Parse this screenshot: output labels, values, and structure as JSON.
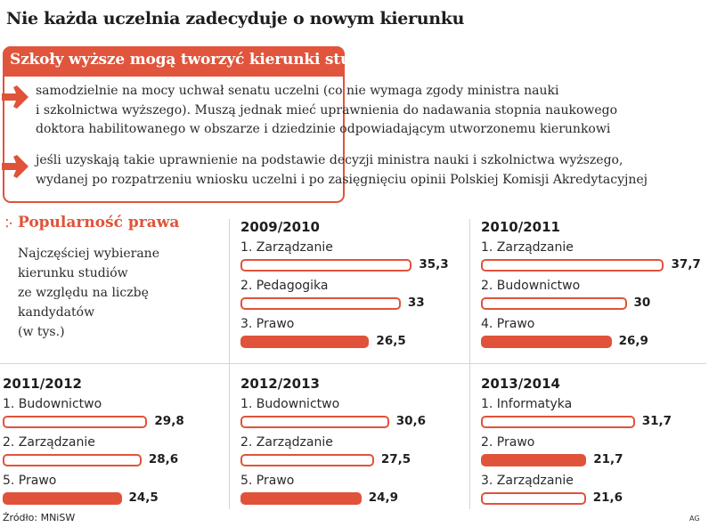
{
  "title": "Nie każda uczelnia zadecyduje o nowym kierunku",
  "infobox": {
    "header": "Szkoły wyższe mogą tworzyć kierunki studiów:",
    "bullets": [
      {
        "icon": "arrow-right-icon",
        "lines": [
          "samodzielnie na mocy uchwał senatu uczelni (co nie wymaga zgody ministra nauki",
          "i szkolnictwa wyższego). Muszą jednak mieć uprawnienia do nadawania stopnia naukowego",
          "doktora habilitowanego w obszarze i dziedzinie odpowiadającym utworzonemu kierunkowi"
        ]
      },
      {
        "icon": "arrow-right-icon",
        "lines": [
          "jeśli uzyskają takie uprawnienie na podstawie decyzji ministra nauki i szkolnictwa wyższego,",
          "wydanej po rozpatrzeniu wniosku uczelni i po zasięgnięciu opinii Polskiej Komisji Akredytacyjnej"
        ]
      }
    ]
  },
  "section": {
    "title": "Popularność prawa",
    "dots_icon": "dots-icon",
    "description": [
      "Najczęściej wybierane",
      "kierunku studiów",
      "ze względu na liczbę",
      "kandydatów",
      "(w tys.)"
    ]
  },
  "colors": {
    "accent": "#e0533a",
    "text": "#1e1e1e",
    "divider": "#d5d5d5"
  },
  "chart_data": {
    "type": "bar",
    "title": "Popularność prawa",
    "subtitle": "Najczęściej wybierane kierunku studiów ze względu na liczbę kandydatów (w tys.)",
    "unit": "tys.",
    "highlight": "Prawo",
    "panels": [
      {
        "year": "2009/2010",
        "items": [
          {
            "label": "1. Zarządzanie",
            "value": 35.3,
            "value_label": "35,3",
            "highlight": false
          },
          {
            "label": "2. Pedagogika",
            "value": 33,
            "value_label": "33",
            "highlight": false
          },
          {
            "label": "3. Prawo",
            "value": 26.5,
            "value_label": "26,5",
            "highlight": true
          }
        ]
      },
      {
        "year": "2010/2011",
        "items": [
          {
            "label": "1. Zarządzanie",
            "value": 37.7,
            "value_label": "37,7",
            "highlight": false
          },
          {
            "label": "2. Budownictwo",
            "value": 30,
            "value_label": "30",
            "highlight": false
          },
          {
            "label": "4. Prawo",
            "value": 26.9,
            "value_label": "26,9",
            "highlight": true
          }
        ]
      },
      {
        "year": "2011/2012",
        "items": [
          {
            "label": "1. Budownictwo",
            "value": 29.8,
            "value_label": "29,8",
            "highlight": false
          },
          {
            "label": "2. Zarządzanie",
            "value": 28.6,
            "value_label": "28,6",
            "highlight": false
          },
          {
            "label": "5. Prawo",
            "value": 24.5,
            "value_label": "24,5",
            "highlight": true
          }
        ]
      },
      {
        "year": "2012/2013",
        "items": [
          {
            "label": "1. Budownictwo",
            "value": 30.6,
            "value_label": "30,6",
            "highlight": false
          },
          {
            "label": "2. Zarządzanie",
            "value": 27.5,
            "value_label": "27,5",
            "highlight": false
          },
          {
            "label": "5. Prawo",
            "value": 24.9,
            "value_label": "24,9",
            "highlight": true
          }
        ]
      },
      {
        "year": "2013/2014",
        "items": [
          {
            "label": "1. Informatyka",
            "value": 31.7,
            "value_label": "31,7",
            "highlight": false
          },
          {
            "label": "2. Prawo",
            "value": 21.7,
            "value_label": "21,7",
            "highlight": true
          },
          {
            "label": "3. Zarządzanie",
            "value": 21.6,
            "value_label": "21,6",
            "highlight": false
          }
        ]
      }
    ]
  },
  "footer": {
    "source": "Źródło: MNiSW",
    "credit": "AG"
  }
}
